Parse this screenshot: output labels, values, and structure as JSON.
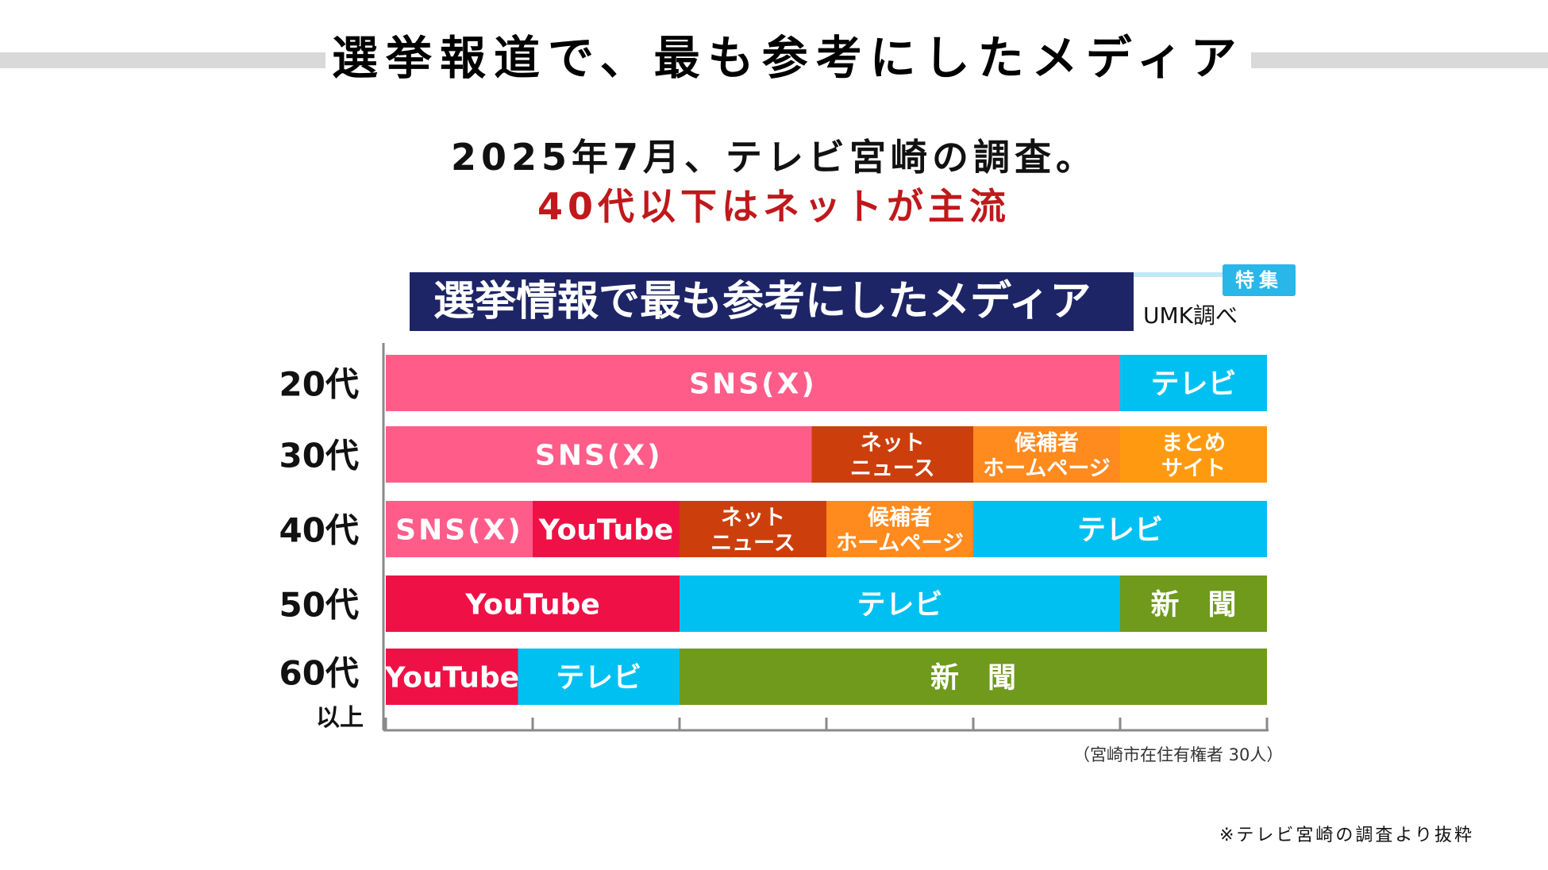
{
  "header": {
    "title": "選挙報道で、最も参考にしたメディア",
    "subtitle": "2025年7月、テレビ宮崎の調査。",
    "highlight": "40代以下はネットが主流"
  },
  "chart_header": {
    "title": "選挙情報で最も参考にしたメディア",
    "tag": "特集",
    "source": "UMK調べ"
  },
  "chart_data": {
    "type": "bar",
    "orientation": "horizontal-stacked",
    "xlim": [
      0,
      30
    ],
    "x_ticks": [
      0,
      5,
      10,
      15,
      20,
      25,
      30
    ],
    "categories": [
      {
        "label": "20代",
        "sublabel": "",
        "segments": [
          {
            "label": "SNS(X)",
            "value": 25,
            "color": "#ff5c8a"
          },
          {
            "label": "テレビ",
            "value": 5,
            "color": "#00c0f2"
          }
        ]
      },
      {
        "label": "30代",
        "sublabel": "",
        "segments": [
          {
            "label": "SNS(X)",
            "value": 14.5,
            "color": "#ff5c8a"
          },
          {
            "label": "ネット\nニュース",
            "value": 5.5,
            "color": "#cc3f0c"
          },
          {
            "label": "候補者\nホームページ",
            "value": 5,
            "color": "#ff8a1e"
          },
          {
            "label": "まとめ\nサイト",
            "value": 5,
            "color": "#ff9a10"
          }
        ]
      },
      {
        "label": "40代",
        "sublabel": "",
        "segments": [
          {
            "label": "SNS(X)",
            "value": 5,
            "color": "#ff5c8a"
          },
          {
            "label": "YouTube",
            "value": 5,
            "color": "#ef1146"
          },
          {
            "label": "ネット\nニュース",
            "value": 5,
            "color": "#cc3f0c"
          },
          {
            "label": "候補者\nホームページ",
            "value": 5,
            "color": "#ff8a1e"
          },
          {
            "label": "テレビ",
            "value": 10,
            "color": "#00c0f2"
          }
        ]
      },
      {
        "label": "50代",
        "sublabel": "",
        "segments": [
          {
            "label": "YouTube",
            "value": 10,
            "color": "#ef1146"
          },
          {
            "label": "テレビ",
            "value": 15,
            "color": "#00c0f2"
          },
          {
            "label": "新　聞",
            "value": 5,
            "color": "#6f9a1c"
          }
        ]
      },
      {
        "label": "60代",
        "sublabel": "以上",
        "segments": [
          {
            "label": "YouTube",
            "value": 4.5,
            "color": "#ef1146"
          },
          {
            "label": "テレビ",
            "value": 5.5,
            "color": "#00c0f2"
          },
          {
            "label": "新　聞",
            "value": 20,
            "color": "#6f9a1c"
          }
        ]
      }
    ],
    "note": "（宮崎市在住有権者 30人）"
  },
  "footer": {
    "credit": "※テレビ宮崎の調査より抜粋"
  }
}
